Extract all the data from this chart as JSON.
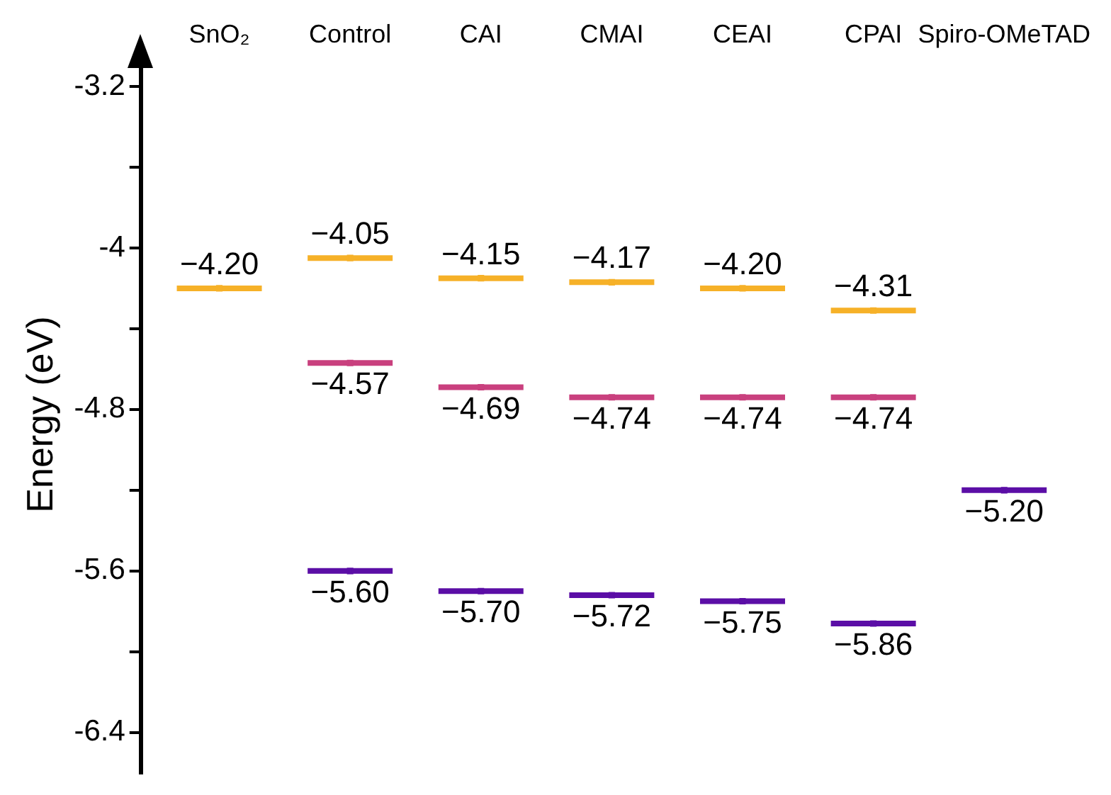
{
  "chart_data": {
    "type": "scatter",
    "ylabel": "Energy (eV)",
    "categories": [
      "SnO₂",
      "Control",
      "CAI",
      "CMAI",
      "CEAI",
      "CPAI",
      "Spiro-OMeTAD"
    ],
    "series": [
      {
        "color": "#f6b128",
        "values": [
          -4.2,
          -4.05,
          -4.15,
          -4.17,
          -4.2,
          -4.31,
          null
        ],
        "value_labels": [
          "−4.20",
          "−4.05",
          "−4.15",
          "−4.17",
          "−4.20",
          "−4.31",
          null
        ]
      },
      {
        "color": "#c9407e",
        "values": [
          null,
          -4.57,
          -4.69,
          -4.74,
          -4.74,
          -4.74,
          null
        ],
        "value_labels": [
          null,
          "−4.57",
          "−4.69",
          "−4.74",
          "−4.74",
          "−4.74",
          null
        ]
      },
      {
        "color": "#5b0ea6",
        "values": [
          null,
          -5.6,
          -5.7,
          -5.72,
          -5.75,
          -5.86,
          -5.2
        ],
        "value_labels": [
          null,
          "−5.60",
          "−5.70",
          "−5.72",
          "−5.75",
          "−5.86",
          "−5.20"
        ]
      }
    ],
    "ylim": [
      -6.6,
      -3.05
    ],
    "yticks": [
      -3.2,
      {
        "value": -3.6,
        "label": null
      },
      -4.0,
      {
        "value": -4.4,
        "label": null
      },
      -4.8,
      {
        "value": -5.2,
        "label": null
      },
      -5.6,
      {
        "value": -6.0,
        "label": null
      },
      -6.4
    ],
    "grid": false,
    "legend": false
  }
}
